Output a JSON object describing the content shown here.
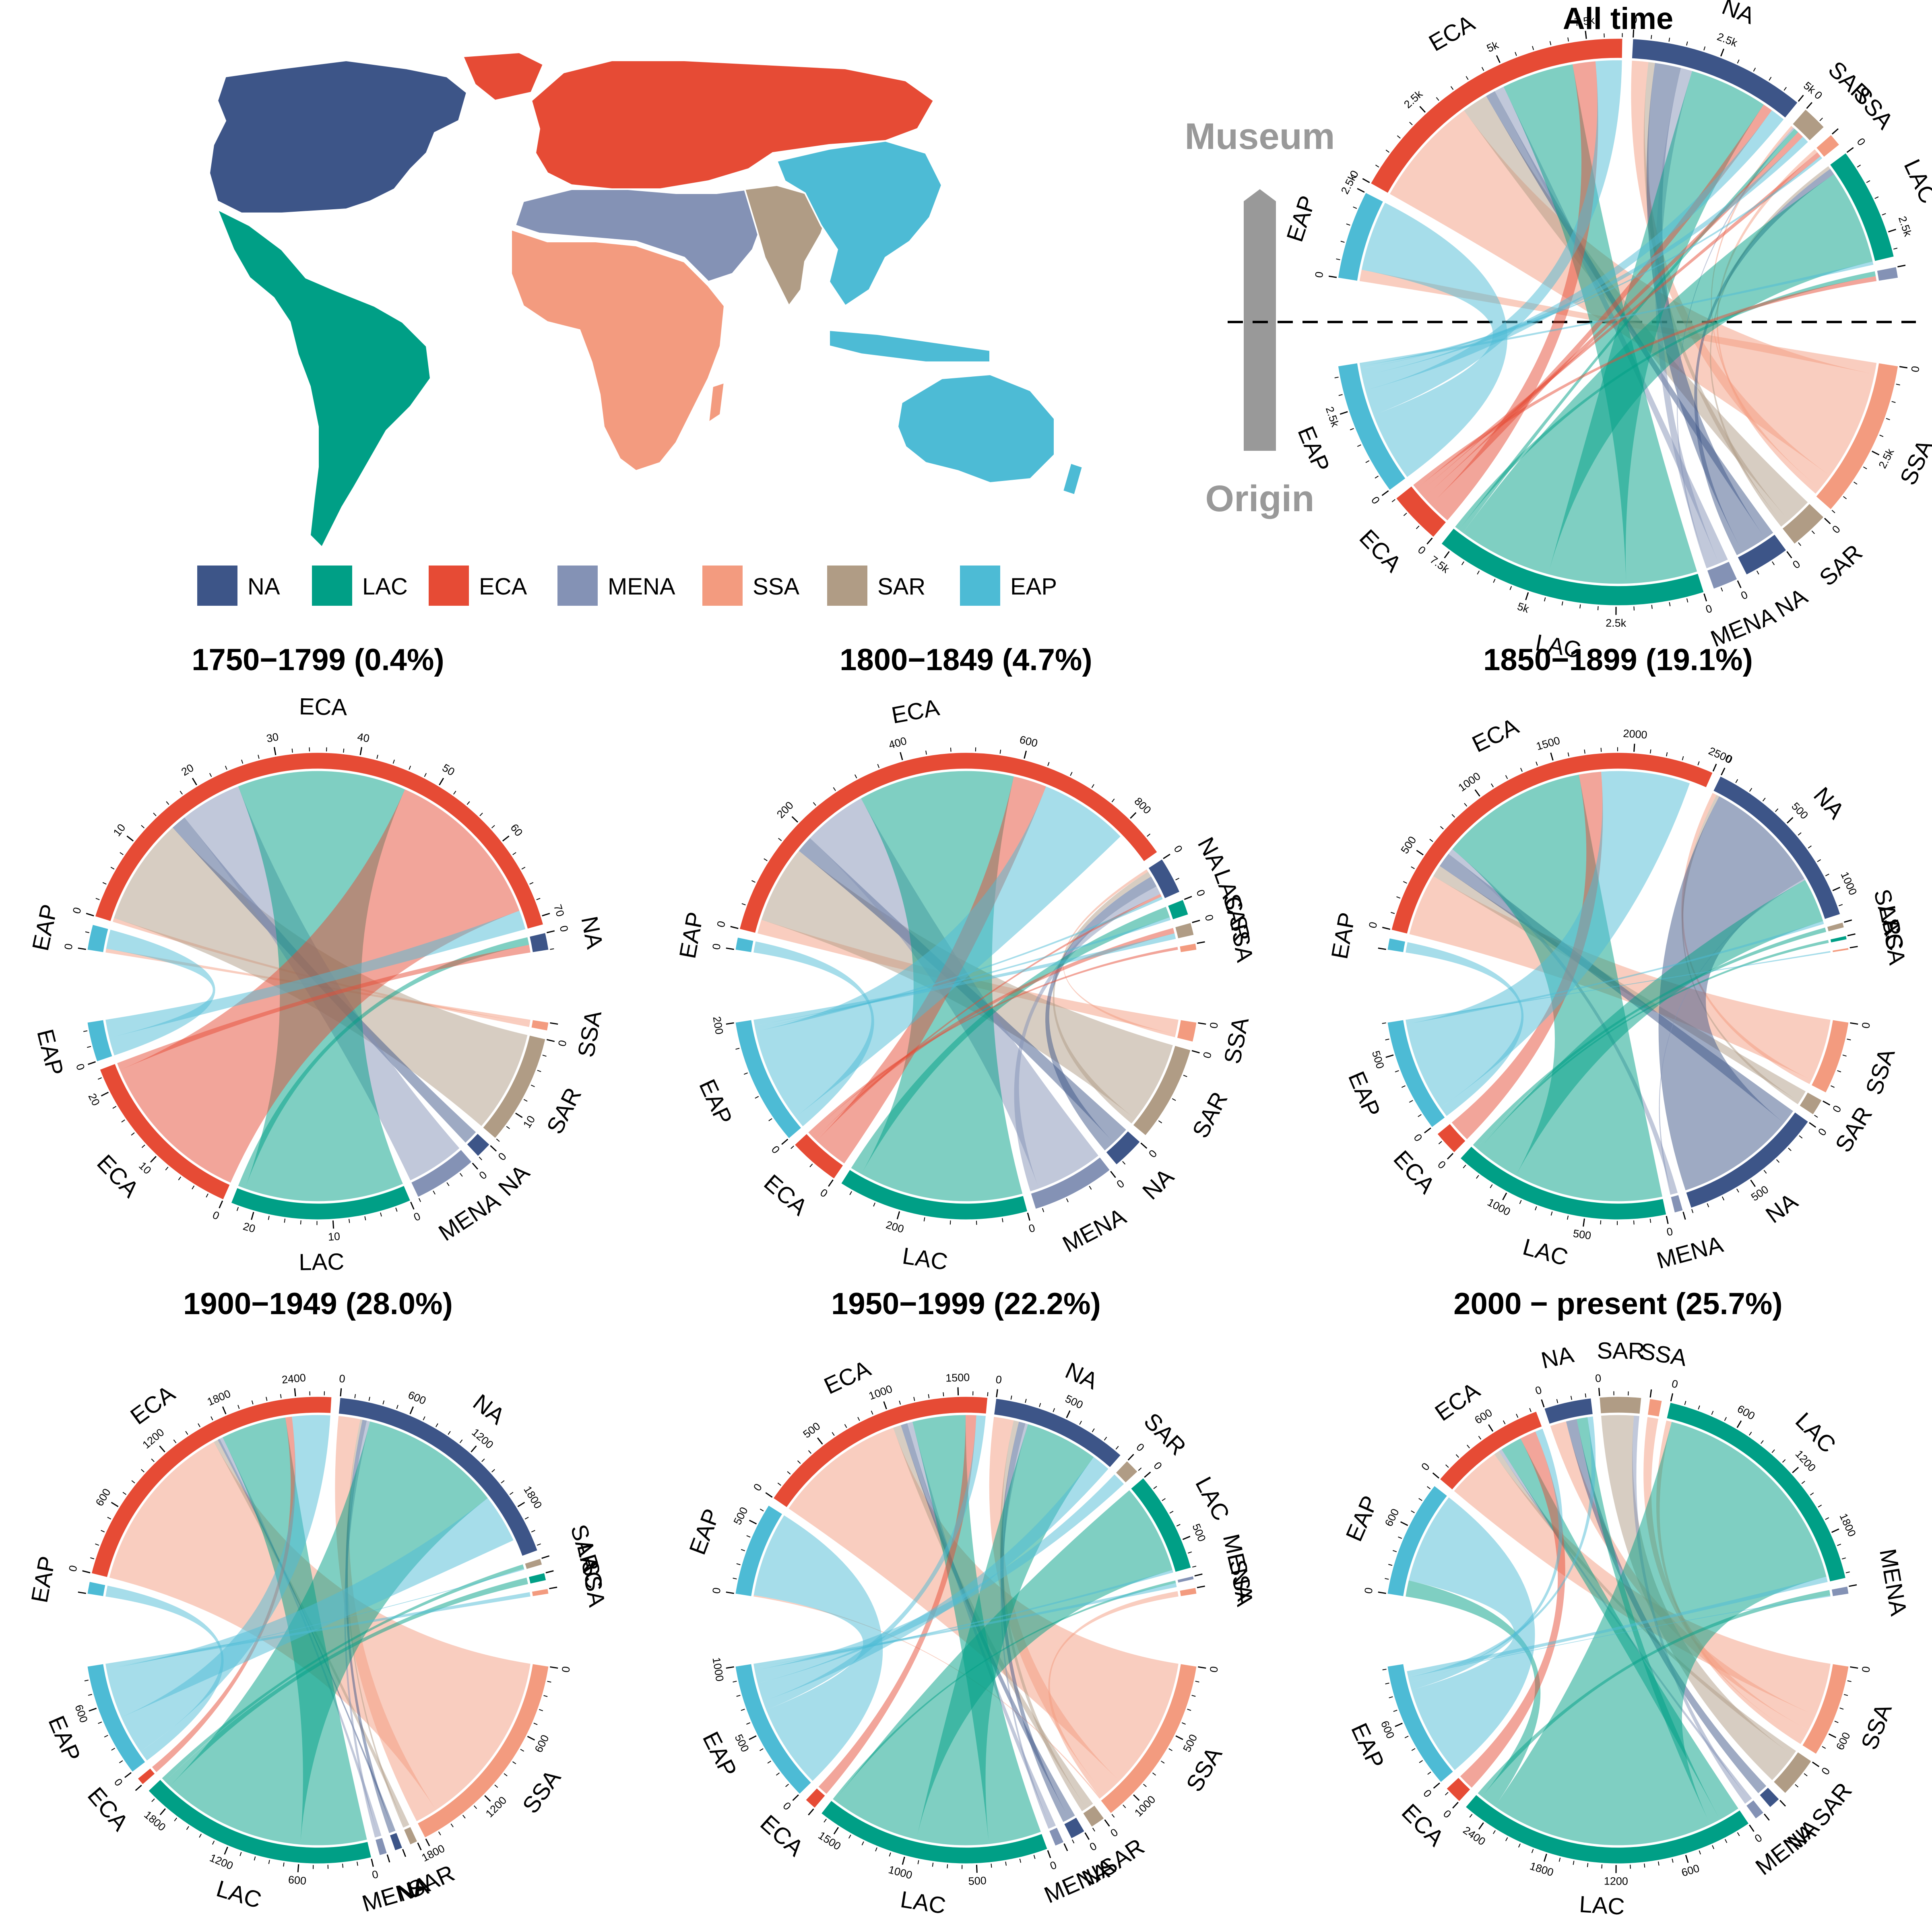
{
  "regions": [
    "NA",
    "LAC",
    "ECA",
    "MENA",
    "SSA",
    "SAR",
    "EAP"
  ],
  "colors": {
    "NA": "#3d5588",
    "LAC": "#009f86",
    "ECA": "#e64b35",
    "MENA": "#8492b5",
    "SSA": "#f39b7f",
    "SAR": "#b09c85",
    "EAP": "#4dbbd5"
  },
  "legend": [
    {
      "code": "NA",
      "label": "NA"
    },
    {
      "code": "LAC",
      "label": "LAC"
    },
    {
      "code": "ECA",
      "label": "ECA"
    },
    {
      "code": "MENA",
      "label": "MENA"
    },
    {
      "code": "SSA",
      "label": "SSA"
    },
    {
      "code": "SAR",
      "label": "SAR"
    },
    {
      "code": "EAP",
      "label": "EAP"
    }
  ],
  "axis_labels": {
    "top": "Museum",
    "bottom": "Origin"
  },
  "map": {
    "type": "world-map",
    "caption": ""
  },
  "chart_data": [
    {
      "type": "chord",
      "title": "All time",
      "museum_order": [
        "EAP",
        "ECA",
        "NA",
        "SAR",
        "SSA",
        "LAC",
        "MENA"
      ],
      "origin_order": [
        "SSA",
        "SAR",
        "NA",
        "MENA",
        "LAC",
        "ECA",
        "EAP"
      ],
      "museum_totals": {
        "EAP": 2500,
        "ECA": 8500,
        "NA": 5000,
        "SAR": 700,
        "SSA": 350,
        "LAC": 3200,
        "MENA": 300
      },
      "origin_totals": {
        "SSA": 4500,
        "SAR": 1100,
        "NA": 1300,
        "MENA": 700,
        "LAC": 7800,
        "ECA": 1500,
        "EAP": 3800
      },
      "flows": [
        {
          "from": "SSA",
          "to": "EAP",
          "value": 350
        },
        {
          "from": "SSA",
          "to": "ECA",
          "value": 3400
        },
        {
          "from": "SSA",
          "to": "NA",
          "value": 500
        },
        {
          "from": "SSA",
          "to": "SAR",
          "value": 80
        },
        {
          "from": "SSA",
          "to": "SSA",
          "value": 120
        },
        {
          "from": "SAR",
          "to": "ECA",
          "value": 800
        },
        {
          "from": "SAR",
          "to": "NA",
          "value": 200
        },
        {
          "from": "SAR",
          "to": "LAC",
          "value": 100
        },
        {
          "from": "NA",
          "to": "ECA",
          "value": 300
        },
        {
          "from": "NA",
          "to": "NA",
          "value": 800
        },
        {
          "from": "NA",
          "to": "LAC",
          "value": 200
        },
        {
          "from": "MENA",
          "to": "ECA",
          "value": 300
        },
        {
          "from": "MENA",
          "to": "NA",
          "value": 350
        },
        {
          "from": "MENA",
          "to": "SAR",
          "value": 50
        },
        {
          "from": "LAC",
          "to": "ECA",
          "value": 2200
        },
        {
          "from": "LAC",
          "to": "NA",
          "value": 2400
        },
        {
          "from": "LAC",
          "to": "LAC",
          "value": 2900
        },
        {
          "from": "LAC",
          "to": "SAR",
          "value": 150
        },
        {
          "from": "LAC",
          "to": "MENA",
          "value": 150
        },
        {
          "from": "ECA",
          "to": "ECA",
          "value": 700
        },
        {
          "from": "ECA",
          "to": "NA",
          "value": 300
        },
        {
          "from": "ECA",
          "to": "SAR",
          "value": 200
        },
        {
          "from": "ECA",
          "to": "SSA",
          "value": 150
        },
        {
          "from": "ECA",
          "to": "MENA",
          "value": 150
        },
        {
          "from": "EAP",
          "to": "EAP",
          "value": 2150
        },
        {
          "from": "EAP",
          "to": "ECA",
          "value": 800
        },
        {
          "from": "EAP",
          "to": "NA",
          "value": 450
        },
        {
          "from": "EAP",
          "to": "SAR",
          "value": 220
        },
        {
          "from": "EAP",
          "to": "SSA",
          "value": 80
        },
        {
          "from": "EAP",
          "to": "LAC",
          "value": 100
        }
      ]
    },
    {
      "type": "chord",
      "title": "1750−1799 (0.4%)",
      "museum_order": [
        "EAP",
        "ECA",
        "NA"
      ],
      "origin_order": [
        "SSA",
        "SAR",
        "NA",
        "MENA",
        "LAC",
        "ECA",
        "EAP"
      ],
      "museum_totals": {
        "EAP": 3,
        "ECA": 71,
        "NA": 2
      },
      "origin_totals": {
        "SSA": 1,
        "SAR": 14,
        "NA": 2,
        "MENA": 8,
        "LAC": 23,
        "ECA": 23,
        "EAP": 5
      },
      "flows": [
        {
          "from": "SSA",
          "to": "EAP",
          "value": 0.5
        },
        {
          "from": "SSA",
          "to": "ECA",
          "value": 0.5
        },
        {
          "from": "SAR",
          "to": "ECA",
          "value": 14
        },
        {
          "from": "NA",
          "to": "ECA",
          "value": 2
        },
        {
          "from": "MENA",
          "to": "ECA",
          "value": 8
        },
        {
          "from": "LAC",
          "to": "ECA",
          "value": 22
        },
        {
          "from": "LAC",
          "to": "NA",
          "value": 1
        },
        {
          "from": "ECA",
          "to": "ECA",
          "value": 22
        },
        {
          "from": "ECA",
          "to": "NA",
          "value": 1
        },
        {
          "from": "EAP",
          "to": "EAP",
          "value": 2.5
        },
        {
          "from": "EAP",
          "to": "ECA",
          "value": 2.5
        }
      ]
    },
    {
      "type": "chord",
      "title": "1800−1849 (4.7%)",
      "museum_order": [
        "EAP",
        "ECA",
        "NA",
        "LAC",
        "SAR",
        "SSA"
      ],
      "origin_order": [
        "SSA",
        "SAR",
        "NA",
        "MENA",
        "LAC",
        "ECA",
        "EAP"
      ],
      "museum_totals": {
        "EAP": 20,
        "ECA": 870,
        "NA": 60,
        "LAC": 25,
        "SAR": 20,
        "SSA": 10
      },
      "origin_totals": {
        "SSA": 30,
        "SAR": 150,
        "NA": 50,
        "MENA": 130,
        "LAC": 300,
        "ECA": 80,
        "EAP": 200
      },
      "flows": [
        {
          "from": "SSA",
          "to": "ECA",
          "value": 25
        },
        {
          "from": "SSA",
          "to": "NA",
          "value": 5
        },
        {
          "from": "SAR",
          "to": "ECA",
          "value": 140
        },
        {
          "from": "SAR",
          "to": "NA",
          "value": 10
        },
        {
          "from": "NA",
          "to": "ECA",
          "value": 30
        },
        {
          "from": "NA",
          "to": "NA",
          "value": 20
        },
        {
          "from": "MENA",
          "to": "ECA",
          "value": 115
        },
        {
          "from": "MENA",
          "to": "NA",
          "value": 15
        },
        {
          "from": "LAC",
          "to": "ECA",
          "value": 280
        },
        {
          "from": "LAC",
          "to": "LAC",
          "value": 20
        },
        {
          "from": "ECA",
          "to": "ECA",
          "value": 60
        },
        {
          "from": "ECA",
          "to": "NA",
          "value": 5
        },
        {
          "from": "ECA",
          "to": "SAR",
          "value": 10
        },
        {
          "from": "ECA",
          "to": "SSA",
          "value": 5
        },
        {
          "from": "EAP",
          "to": "EAP",
          "value": 20
        },
        {
          "from": "EAP",
          "to": "ECA",
          "value": 160
        },
        {
          "from": "EAP",
          "to": "NA",
          "value": 5
        },
        {
          "from": "EAP",
          "to": "LAC",
          "value": 5
        },
        {
          "from": "EAP",
          "to": "SAR",
          "value": 10
        }
      ]
    },
    {
      "type": "chord",
      "title": "1850−1899 (19.1%)",
      "museum_order": [
        "EAP",
        "ECA",
        "NA",
        "SAR",
        "LAC",
        "SSA"
      ],
      "origin_order": [
        "SSA",
        "SAR",
        "NA",
        "MENA",
        "LAC",
        "ECA",
        "EAP"
      ],
      "museum_totals": {
        "EAP": 70,
        "ECA": 2500,
        "NA": 1150,
        "SAR": 30,
        "LAC": 20,
        "SSA": 10
      },
      "origin_totals": {
        "SSA": 450,
        "SAR": 100,
        "NA": 900,
        "MENA": 50,
        "LAC": 1350,
        "ECA": 150,
        "EAP": 700
      },
      "flows": [
        {
          "from": "SSA",
          "to": "ECA",
          "value": 420
        },
        {
          "from": "SSA",
          "to": "NA",
          "value": 30
        },
        {
          "from": "SAR",
          "to": "ECA",
          "value": 80
        },
        {
          "from": "SAR",
          "to": "NA",
          "value": 20
        },
        {
          "from": "NA",
          "to": "ECA",
          "value": 100
        },
        {
          "from": "NA",
          "to": "NA",
          "value": 800
        },
        {
          "from": "MENA",
          "to": "ECA",
          "value": 40
        },
        {
          "from": "MENA",
          "to": "NA",
          "value": 10
        },
        {
          "from": "LAC",
          "to": "ECA",
          "value": 1000
        },
        {
          "from": "LAC",
          "to": "NA",
          "value": 300
        },
        {
          "from": "LAC",
          "to": "LAC",
          "value": 20
        },
        {
          "from": "LAC",
          "to": "SAR",
          "value": 30
        },
        {
          "from": "ECA",
          "to": "ECA",
          "value": 150
        },
        {
          "from": "EAP",
          "to": "EAP",
          "value": 70
        },
        {
          "from": "EAP",
          "to": "ECA",
          "value": 600
        },
        {
          "from": "EAP",
          "to": "NA",
          "value": 20
        },
        {
          "from": "EAP",
          "to": "SSA",
          "value": 10
        }
      ]
    },
    {
      "type": "chord",
      "title": "1900−1949 (28.0%)",
      "museum_order": [
        "EAP",
        "ECA",
        "NA",
        "SAR",
        "LAC",
        "SSA"
      ],
      "origin_order": [
        "SSA",
        "SAR",
        "NA",
        "MENA",
        "LAC",
        "ECA",
        "EAP"
      ],
      "museum_totals": {
        "EAP": 100,
        "ECA": 2700,
        "NA": 2200,
        "SAR": 50,
        "LAC": 60,
        "SSA": 40
      },
      "origin_totals": {
        "SSA": 1800,
        "SAR": 60,
        "NA": 60,
        "MENA": 60,
        "LAC": 2000,
        "ECA": 60,
        "EAP": 950
      },
      "flows": [
        {
          "from": "SSA",
          "to": "ECA",
          "value": 1600
        },
        {
          "from": "SSA",
          "to": "NA",
          "value": 200
        },
        {
          "from": "SAR",
          "to": "ECA",
          "value": 40
        },
        {
          "from": "SAR",
          "to": "NA",
          "value": 20
        },
        {
          "from": "NA",
          "to": "ECA",
          "value": 20
        },
        {
          "from": "NA",
          "to": "NA",
          "value": 40
        },
        {
          "from": "MENA",
          "to": "ECA",
          "value": 30
        },
        {
          "from": "MENA",
          "to": "NA",
          "value": 30
        },
        {
          "from": "LAC",
          "to": "ECA",
          "value": 600
        },
        {
          "from": "LAC",
          "to": "NA",
          "value": 1300
        },
        {
          "from": "LAC",
          "to": "LAC",
          "value": 60
        },
        {
          "from": "LAC",
          "to": "SAR",
          "value": 40
        },
        {
          "from": "ECA",
          "to": "ECA",
          "value": 60
        },
        {
          "from": "EAP",
          "to": "EAP",
          "value": 100
        },
        {
          "from": "EAP",
          "to": "ECA",
          "value": 350
        },
        {
          "from": "EAP",
          "to": "NA",
          "value": 450
        },
        {
          "from": "EAP",
          "to": "SAR",
          "value": 10
        },
        {
          "from": "EAP",
          "to": "SSA",
          "value": 40
        }
      ]
    },
    {
      "type": "chord",
      "title": "1950−1999 (22.2%)",
      "museum_order": [
        "EAP",
        "ECA",
        "NA",
        "SAR",
        "LAC",
        "MENA",
        "SSA"
      ],
      "origin_order": [
        "SSA",
        "SAR",
        "NA",
        "MENA",
        "LAC",
        "ECA",
        "EAP"
      ],
      "museum_totals": {
        "EAP": 650,
        "ECA": 1700,
        "NA": 950,
        "SAR": 100,
        "LAC": 700,
        "MENA": 20,
        "SSA": 40
      },
      "origin_totals": {
        "SSA": 1200,
        "SAR": 100,
        "NA": 100,
        "MENA": 60,
        "LAC": 1650,
        "ECA": 80,
        "EAP": 1000
      },
      "flows": [
        {
          "from": "SSA",
          "to": "ECA",
          "value": 1000
        },
        {
          "from": "SSA",
          "to": "NA",
          "value": 150
        },
        {
          "from": "SSA",
          "to": "SSA",
          "value": 40
        },
        {
          "from": "SSA",
          "to": "EAP",
          "value": 10
        },
        {
          "from": "SAR",
          "to": "ECA",
          "value": 60
        },
        {
          "from": "SAR",
          "to": "NA",
          "value": 40
        },
        {
          "from": "NA",
          "to": "ECA",
          "value": 50
        },
        {
          "from": "NA",
          "to": "NA",
          "value": 50
        },
        {
          "from": "MENA",
          "to": "ECA",
          "value": 40
        },
        {
          "from": "MENA",
          "to": "NA",
          "value": 20
        },
        {
          "from": "LAC",
          "to": "ECA",
          "value": 400
        },
        {
          "from": "LAC",
          "to": "NA",
          "value": 550
        },
        {
          "from": "LAC",
          "to": "LAC",
          "value": 680
        },
        {
          "from": "LAC",
          "to": "MENA",
          "value": 20
        },
        {
          "from": "ECA",
          "to": "ECA",
          "value": 80
        },
        {
          "from": "EAP",
          "to": "EAP",
          "value": 640
        },
        {
          "from": "EAP",
          "to": "ECA",
          "value": 70
        },
        {
          "from": "EAP",
          "to": "NA",
          "value": 140
        },
        {
          "from": "EAP",
          "to": "SAR",
          "value": 100
        },
        {
          "from": "EAP",
          "to": "LAC",
          "value": 20
        },
        {
          "from": "EAP",
          "to": "MENA",
          "value": 30
        }
      ]
    },
    {
      "type": "chord",
      "title": "2000 − present (25.7%)",
      "museum_order": [
        "EAP",
        "ECA",
        "NA",
        "SAR",
        "SSA",
        "LAC",
        "MENA"
      ],
      "origin_order": [
        "SSA",
        "SAR",
        "NA",
        "MENA",
        "LAC",
        "ECA",
        "EAP"
      ],
      "museum_totals": {
        "EAP": 1000,
        "ECA": 1000,
        "NA": 400,
        "SAR": 350,
        "SSA": 100,
        "LAC": 2200,
        "MENA": 60
      },
      "origin_totals": {
        "SSA": 800,
        "SAR": 350,
        "NA": 100,
        "MENA": 80,
        "LAC": 2600,
        "ECA": 150,
        "EAP": 1100
      },
      "flows": [
        {
          "from": "SSA",
          "to": "ECA",
          "value": 500
        },
        {
          "from": "SSA",
          "to": "NA",
          "value": 150
        },
        {
          "from": "SSA",
          "to": "SSA",
          "value": 100
        },
        {
          "from": "SSA",
          "to": "LAC",
          "value": 50
        },
        {
          "from": "SAR",
          "to": "ECA",
          "value": 50
        },
        {
          "from": "SAR",
          "to": "SAR",
          "value": 300
        },
        {
          "from": "NA",
          "to": "NA",
          "value": 100
        },
        {
          "from": "MENA",
          "to": "ECA",
          "value": 30
        },
        {
          "from": "MENA",
          "to": "SAR",
          "value": 50
        },
        {
          "from": "LAC",
          "to": "ECA",
          "value": 200
        },
        {
          "from": "LAC",
          "to": "NA",
          "value": 100
        },
        {
          "from": "LAC",
          "to": "LAC",
          "value": 2100
        },
        {
          "from": "LAC",
          "to": "EAP",
          "value": 150
        },
        {
          "from": "LAC",
          "to": "MENA",
          "value": 50
        },
        {
          "from": "ECA",
          "to": "ECA",
          "value": 150
        },
        {
          "from": "EAP",
          "to": "EAP",
          "value": 850
        },
        {
          "from": "EAP",
          "to": "ECA",
          "value": 70
        },
        {
          "from": "EAP",
          "to": "NA",
          "value": 50
        },
        {
          "from": "EAP",
          "to": "MENA",
          "value": 10
        },
        {
          "from": "EAP",
          "to": "SSA",
          "value": 0
        },
        {
          "from": "EAP",
          "to": "LAC",
          "value": 50
        }
      ]
    }
  ]
}
